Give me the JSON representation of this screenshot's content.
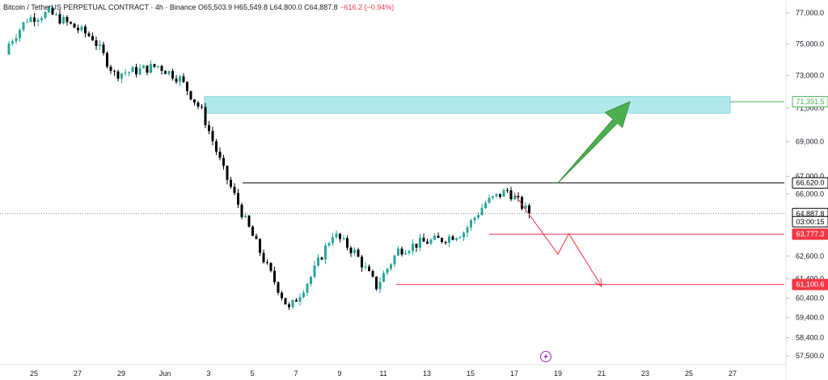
{
  "header": {
    "symbol": "Bitcoin / TetherUS PERPETUAL CONTRACT",
    "interval": "4h",
    "exchange": "Binance",
    "open": "O65,503.9",
    "high": "H65,549.8",
    "low": "L64,800.0",
    "close": "C64,887.8",
    "change": "−616.2 (−0.94%)"
  },
  "colors": {
    "up": "#26a69a",
    "down": "#000000",
    "zone": "#9ee3e6",
    "target_green": "#4caf50",
    "support_red": "#f23645",
    "resistance_black": "#000000"
  },
  "price_axis": {
    "labels": [
      "77,000.0",
      "75,000.0",
      "73,000.0",
      "71,000.0",
      "69,000.0",
      "67,000.0",
      "66,000.0",
      "62,600.0",
      "61,400.0",
      "60,400.0",
      "59,400.0",
      "58,400.0",
      "57,500.0"
    ]
  },
  "time_axis": {
    "labels": [
      "25",
      "27",
      "29",
      "Jun",
      "3",
      "5",
      "7",
      "9",
      "11",
      "13",
      "15",
      "17",
      "19",
      "21",
      "23",
      "25",
      "27"
    ]
  },
  "price_tags": {
    "target": "71,391.5",
    "resistance": "66,620.0",
    "last_price": "64,887.8",
    "countdown": "03:00:15",
    "support1": "63,777.3",
    "support2": "61,100.6"
  },
  "chart_data": {
    "type": "candlestick",
    "y_scale": "log",
    "ylim": [
      57300,
      77800
    ],
    "x_range_days": [
      "May 24",
      "Jun 28"
    ],
    "close_series_approx": [
      {
        "date": "May 24",
        "value": 74700
      },
      {
        "date": "May 25",
        "value": 76600
      },
      {
        "date": "May 26",
        "value": 77000
      },
      {
        "date": "May 27",
        "value": 76200
      },
      {
        "date": "May 28",
        "value": 75400
      },
      {
        "date": "May 29",
        "value": 73100
      },
      {
        "date": "May 30",
        "value": 73300
      },
      {
        "date": "May 31",
        "value": 73600
      },
      {
        "date": "Jun 1",
        "value": 72800
      },
      {
        "date": "Jun 2",
        "value": 70800
      },
      {
        "date": "Jun 3",
        "value": 67300
      },
      {
        "date": "Jun 4",
        "value": 64500
      },
      {
        "date": "Jun 5",
        "value": 62000
      },
      {
        "date": "Jun 6",
        "value": 59800
      },
      {
        "date": "Jun 7",
        "value": 61500
      },
      {
        "date": "Jun 8",
        "value": 63800
      },
      {
        "date": "Jun 9",
        "value": 62800
      },
      {
        "date": "Jun 10",
        "value": 61000
      },
      {
        "date": "Jun 11",
        "value": 62900
      },
      {
        "date": "Jun 12",
        "value": 63300
      },
      {
        "date": "Jun 13",
        "value": 63500
      },
      {
        "date": "Jun 14",
        "value": 63900
      },
      {
        "date": "Jun 15",
        "value": 65500
      },
      {
        "date": "Jun 16",
        "value": 66200
      },
      {
        "date": "Jun 17",
        "value": 64900
      }
    ],
    "levels": [
      {
        "value": 71391.5
      },
      {
        "value": 66620.0
      },
      {
        "value": 63777.3
      },
      {
        "value": 61100.6
      }
    ],
    "zone": {
      "from": 70700,
      "to": 71700
    },
    "projection_up": [
      {
        "date": "Jun 18",
        "value": 66620
      },
      {
        "date": "Jun 21",
        "value": 71391.5
      }
    ],
    "projection_down": [
      {
        "date": "Jun 16",
        "value": 66000
      },
      {
        "date": "Jun 18",
        "value": 62700
      },
      {
        "date": "Jun 18.5",
        "value": 63800
      },
      {
        "date": "Jun 20",
        "value": 61000
      }
    ]
  }
}
